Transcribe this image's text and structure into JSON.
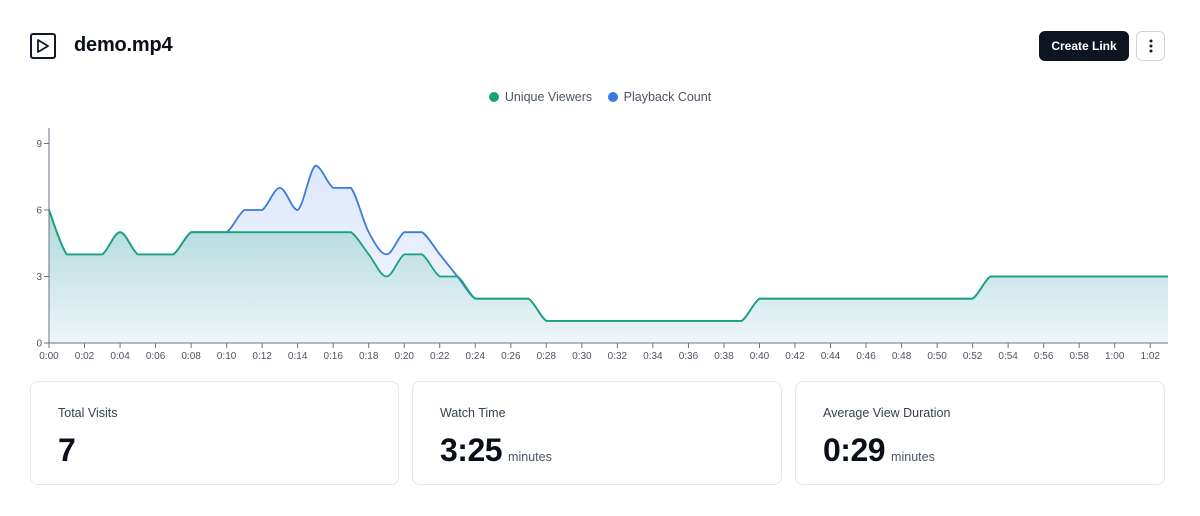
{
  "header": {
    "title": "demo.mp4",
    "create_link_label": "Create Link",
    "video_icon": "play-video-icon",
    "more_icon": "more-vertical-icon"
  },
  "legend": [
    {
      "label": "Unique Viewers",
      "color": "#16a37a"
    },
    {
      "label": "Playback Count",
      "color": "#3b7be0"
    }
  ],
  "chart_data": {
    "type": "area",
    "x": [
      "0:00",
      "0:01",
      "0:02",
      "0:03",
      "0:04",
      "0:05",
      "0:06",
      "0:07",
      "0:08",
      "0:09",
      "0:10",
      "0:11",
      "0:12",
      "0:13",
      "0:14",
      "0:15",
      "0:16",
      "0:17",
      "0:18",
      "0:19",
      "0:20",
      "0:21",
      "0:22",
      "0:23",
      "0:24",
      "0:25",
      "0:26",
      "0:27",
      "0:28",
      "0:29",
      "0:30",
      "0:31",
      "0:32",
      "0:33",
      "0:34",
      "0:35",
      "0:36",
      "0:37",
      "0:38",
      "0:39",
      "0:40",
      "0:41",
      "0:42",
      "0:43",
      "0:44",
      "0:45",
      "0:46",
      "0:47",
      "0:48",
      "0:49",
      "0:50",
      "0:51",
      "0:52",
      "0:53",
      "0:54",
      "0:55",
      "0:56",
      "0:57",
      "0:58",
      "0:59",
      "1:00",
      "1:01",
      "1:02",
      "1:03"
    ],
    "x_ticks": [
      "0:00",
      "0:02",
      "0:04",
      "0:06",
      "0:08",
      "0:10",
      "0:12",
      "0:14",
      "0:16",
      "0:18",
      "0:20",
      "0:22",
      "0:24",
      "0:26",
      "0:28",
      "0:30",
      "0:32",
      "0:34",
      "0:36",
      "0:38",
      "0:40",
      "0:42",
      "0:44",
      "0:46",
      "0:48",
      "0:50",
      "0:52",
      "0:54",
      "0:56",
      "0:58",
      "1:00",
      "1:02"
    ],
    "y_ticks": [
      0,
      3,
      6,
      9
    ],
    "ylim": [
      0,
      9.7
    ],
    "series": [
      {
        "name": "Playback Count",
        "color": "#3b7be0",
        "values": [
          6,
          4,
          4,
          4,
          5,
          4,
          4,
          4,
          5,
          5,
          5,
          6,
          6,
          7,
          6,
          8,
          7,
          7,
          5,
          4,
          5,
          5,
          4,
          3,
          2,
          2,
          2,
          2,
          1,
          1,
          1,
          1,
          1,
          1,
          1,
          1,
          1,
          1,
          1,
          1,
          2,
          2,
          2,
          2,
          2,
          2,
          2,
          2,
          2,
          2,
          2,
          2,
          2,
          3,
          3,
          3,
          3,
          3,
          3,
          3,
          3,
          3,
          3,
          3
        ]
      },
      {
        "name": "Unique Viewers",
        "color": "#16a37a",
        "values": [
          6,
          4,
          4,
          4,
          5,
          4,
          4,
          4,
          5,
          5,
          5,
          5,
          5,
          5,
          5,
          5,
          5,
          5,
          4,
          3,
          4,
          4,
          3,
          3,
          2,
          2,
          2,
          2,
          1,
          1,
          1,
          1,
          1,
          1,
          1,
          1,
          1,
          1,
          1,
          1,
          2,
          2,
          2,
          2,
          2,
          2,
          2,
          2,
          2,
          2,
          2,
          2,
          2,
          3,
          3,
          3,
          3,
          3,
          3,
          3,
          3,
          3,
          3,
          3
        ]
      }
    ],
    "grid": false
  },
  "stats": [
    {
      "label": "Total Visits",
      "value": "7",
      "unit": ""
    },
    {
      "label": "Watch Time",
      "value": "3:25",
      "unit": "minutes"
    },
    {
      "label": "Average View Duration",
      "value": "0:29",
      "unit": "minutes"
    }
  ]
}
